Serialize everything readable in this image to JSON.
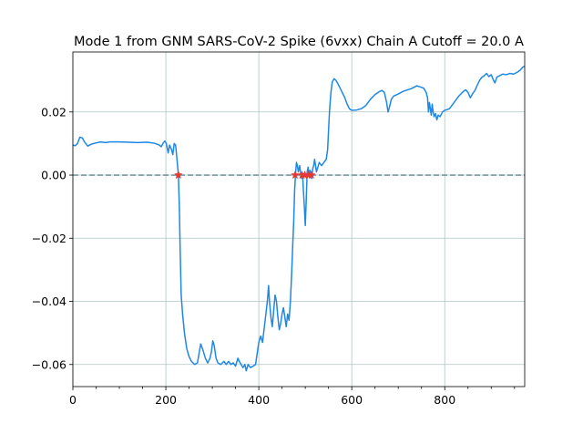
{
  "chart_data": {
    "type": "line",
    "title": "Mode 1 from GNM SARS-CoV-2 Spike (6vxx) Chain A Cutoff = 20.0 A",
    "xlabel": "",
    "ylabel": "",
    "xlim": [
      0,
      972
    ],
    "ylim": [
      -0.067,
      0.039
    ],
    "grid": true,
    "x_ticks": [
      0,
      200,
      400,
      600,
      800
    ],
    "x_tick_labels": [
      "0",
      "200",
      "400",
      "600",
      "800"
    ],
    "y_ticks": [
      0.02,
      0.0,
      -0.02,
      -0.04,
      -0.06
    ],
    "y_tick_labels": [
      "0.02",
      "0.00",
      "−0.02",
      "−0.04",
      "−0.06"
    ],
    "series": [
      {
        "color": "#1e88e5",
        "points": [
          [
            0,
            0.0095
          ],
          [
            5,
            0.0093
          ],
          [
            10,
            0.01
          ],
          [
            15,
            0.012
          ],
          [
            20,
            0.0118
          ],
          [
            25,
            0.0105
          ],
          [
            32,
            0.0092
          ],
          [
            40,
            0.0098
          ],
          [
            50,
            0.0102
          ],
          [
            60,
            0.0105
          ],
          [
            70,
            0.0103
          ],
          [
            80,
            0.0105
          ],
          [
            100,
            0.0105
          ],
          [
            120,
            0.0104
          ],
          [
            140,
            0.0103
          ],
          [
            160,
            0.0104
          ],
          [
            175,
            0.0101
          ],
          [
            185,
            0.0096
          ],
          [
            190,
            0.009
          ],
          [
            195,
            0.0103
          ],
          [
            198,
            0.0108
          ],
          [
            201,
            0.01
          ],
          [
            205,
            0.007
          ],
          [
            208,
            0.0095
          ],
          [
            212,
            0.0082
          ],
          [
            215,
            0.0065
          ],
          [
            218,
            0.01
          ],
          [
            221,
            0.0095
          ],
          [
            224,
            0.005
          ],
          [
            227,
            0.0
          ],
          [
            229,
            -0.01
          ],
          [
            231,
            -0.025
          ],
          [
            233,
            -0.038
          ],
          [
            236,
            -0.044
          ],
          [
            240,
            -0.05
          ],
          [
            245,
            -0.055
          ],
          [
            250,
            -0.0575
          ],
          [
            255,
            -0.059
          ],
          [
            262,
            -0.06
          ],
          [
            268,
            -0.0595
          ],
          [
            272,
            -0.056
          ],
          [
            275,
            -0.0535
          ],
          [
            280,
            -0.0555
          ],
          [
            285,
            -0.058
          ],
          [
            290,
            -0.0595
          ],
          [
            295,
            -0.058
          ],
          [
            298,
            -0.056
          ],
          [
            301,
            -0.0525
          ],
          [
            304,
            -0.054
          ],
          [
            308,
            -0.058
          ],
          [
            312,
            -0.0595
          ],
          [
            318,
            -0.06
          ],
          [
            325,
            -0.059
          ],
          [
            330,
            -0.06
          ],
          [
            335,
            -0.059
          ],
          [
            340,
            -0.06
          ],
          [
            345,
            -0.0595
          ],
          [
            350,
            -0.0605
          ],
          [
            355,
            -0.058
          ],
          [
            358,
            -0.059
          ],
          [
            362,
            -0.06
          ],
          [
            366,
            -0.061
          ],
          [
            370,
            -0.06
          ],
          [
            373,
            -0.062
          ],
          [
            377,
            -0.06
          ],
          [
            382,
            -0.061
          ],
          [
            388,
            -0.0605
          ],
          [
            393,
            -0.06
          ],
          [
            397,
            -0.056
          ],
          [
            400,
            -0.053
          ],
          [
            404,
            -0.051
          ],
          [
            408,
            -0.053
          ],
          [
            412,
            -0.048
          ],
          [
            416,
            -0.043
          ],
          [
            419,
            -0.039
          ],
          [
            421,
            -0.035
          ],
          [
            423,
            -0.04
          ],
          [
            426,
            -0.045
          ],
          [
            429,
            -0.048
          ],
          [
            432,
            -0.043
          ],
          [
            435,
            -0.038
          ],
          [
            438,
            -0.04
          ],
          [
            441,
            -0.045
          ],
          [
            444,
            -0.049
          ],
          [
            447,
            -0.047
          ],
          [
            450,
            -0.044
          ],
          [
            453,
            -0.042
          ],
          [
            456,
            -0.045
          ],
          [
            459,
            -0.048
          ],
          [
            462,
            -0.044
          ],
          [
            465,
            -0.046
          ],
          [
            468,
            -0.04
          ],
          [
            471,
            -0.03
          ],
          [
            473,
            -0.022
          ],
          [
            475,
            -0.015
          ],
          [
            477,
            -0.005
          ],
          [
            479,
            0.0005
          ],
          [
            481,
            0.004
          ],
          [
            483,
            0.003
          ],
          [
            485,
            0.001
          ],
          [
            488,
            0.003
          ],
          [
            490,
            0.0005
          ],
          [
            492,
            -0.001
          ],
          [
            494,
            0.0005
          ],
          [
            496,
            -0.005
          ],
          [
            498,
            -0.01
          ],
          [
            500,
            -0.016
          ],
          [
            502,
            -0.008
          ],
          [
            504,
            0.001
          ],
          [
            506,
            0.0025
          ],
          [
            508,
            0.0
          ],
          [
            510,
            0.0015
          ],
          [
            512,
            0.0005
          ],
          [
            514,
            -0.001
          ],
          [
            516,
            0.002
          ],
          [
            518,
            0.003
          ],
          [
            520,
            0.005
          ],
          [
            522,
            0.003
          ],
          [
            524,
            0.001
          ],
          [
            526,
            0.002
          ],
          [
            530,
            0.004
          ],
          [
            535,
            0.003
          ],
          [
            540,
            0.004
          ],
          [
            545,
            0.005
          ],
          [
            548,
            0.008
          ],
          [
            550,
            0.014
          ],
          [
            552,
            0.02
          ],
          [
            555,
            0.026
          ],
          [
            558,
            0.0295
          ],
          [
            562,
            0.0305
          ],
          [
            566,
            0.03
          ],
          [
            570,
            0.029
          ],
          [
            575,
            0.0275
          ],
          [
            580,
            0.026
          ],
          [
            585,
            0.0245
          ],
          [
            590,
            0.0225
          ],
          [
            595,
            0.021
          ],
          [
            600,
            0.0205
          ],
          [
            610,
            0.0206
          ],
          [
            620,
            0.021
          ],
          [
            630,
            0.022
          ],
          [
            640,
            0.024
          ],
          [
            650,
            0.0255
          ],
          [
            660,
            0.0265
          ],
          [
            665,
            0.0268
          ],
          [
            670,
            0.0262
          ],
          [
            675,
            0.023
          ],
          [
            678,
            0.02
          ],
          [
            681,
            0.0215
          ],
          [
            685,
            0.024
          ],
          [
            690,
            0.025
          ],
          [
            700,
            0.0257
          ],
          [
            710,
            0.0265
          ],
          [
            720,
            0.027
          ],
          [
            730,
            0.0275
          ],
          [
            740,
            0.0283
          ],
          [
            745,
            0.028
          ],
          [
            750,
            0.0278
          ],
          [
            755,
            0.0275
          ],
          [
            760,
            0.0262
          ],
          [
            763,
            0.0245
          ],
          [
            765,
            0.02
          ],
          [
            767,
            0.023
          ],
          [
            769,
            0.021
          ],
          [
            771,
            0.019
          ],
          [
            773,
            0.0225
          ],
          [
            775,
            0.02
          ],
          [
            777,
            0.0185
          ],
          [
            780,
            0.0195
          ],
          [
            783,
            0.0175
          ],
          [
            786,
            0.019
          ],
          [
            790,
            0.0185
          ],
          [
            795,
            0.02
          ],
          [
            800,
            0.0205
          ],
          [
            810,
            0.021
          ],
          [
            820,
            0.023
          ],
          [
            830,
            0.025
          ],
          [
            840,
            0.0265
          ],
          [
            845,
            0.027
          ],
          [
            850,
            0.0262
          ],
          [
            855,
            0.0245
          ],
          [
            860,
            0.0258
          ],
          [
            865,
            0.0268
          ],
          [
            870,
            0.0285
          ],
          [
            875,
            0.03
          ],
          [
            880,
            0.031
          ],
          [
            885,
            0.0315
          ],
          [
            890,
            0.0322
          ],
          [
            895,
            0.0312
          ],
          [
            900,
            0.0318
          ],
          [
            905,
            0.03
          ],
          [
            908,
            0.0292
          ],
          [
            912,
            0.031
          ],
          [
            918,
            0.0315
          ],
          [
            925,
            0.032
          ],
          [
            932,
            0.0318
          ],
          [
            940,
            0.0322
          ],
          [
            948,
            0.032
          ],
          [
            955,
            0.0325
          ],
          [
            962,
            0.0332
          ],
          [
            968,
            0.0342
          ],
          [
            972,
            0.0345
          ]
        ]
      }
    ],
    "zero_line": {
      "y": 0.0,
      "style": "dashed",
      "color": "#5a8a8a"
    },
    "markers": {
      "symbol": "star",
      "color": "#e53935",
      "points": [
        [
          227,
          0.0
        ],
        [
          478,
          0.0
        ],
        [
          493,
          0.0
        ],
        [
          499,
          0.0
        ],
        [
          507,
          0.0
        ],
        [
          513,
          0.0
        ]
      ]
    }
  }
}
